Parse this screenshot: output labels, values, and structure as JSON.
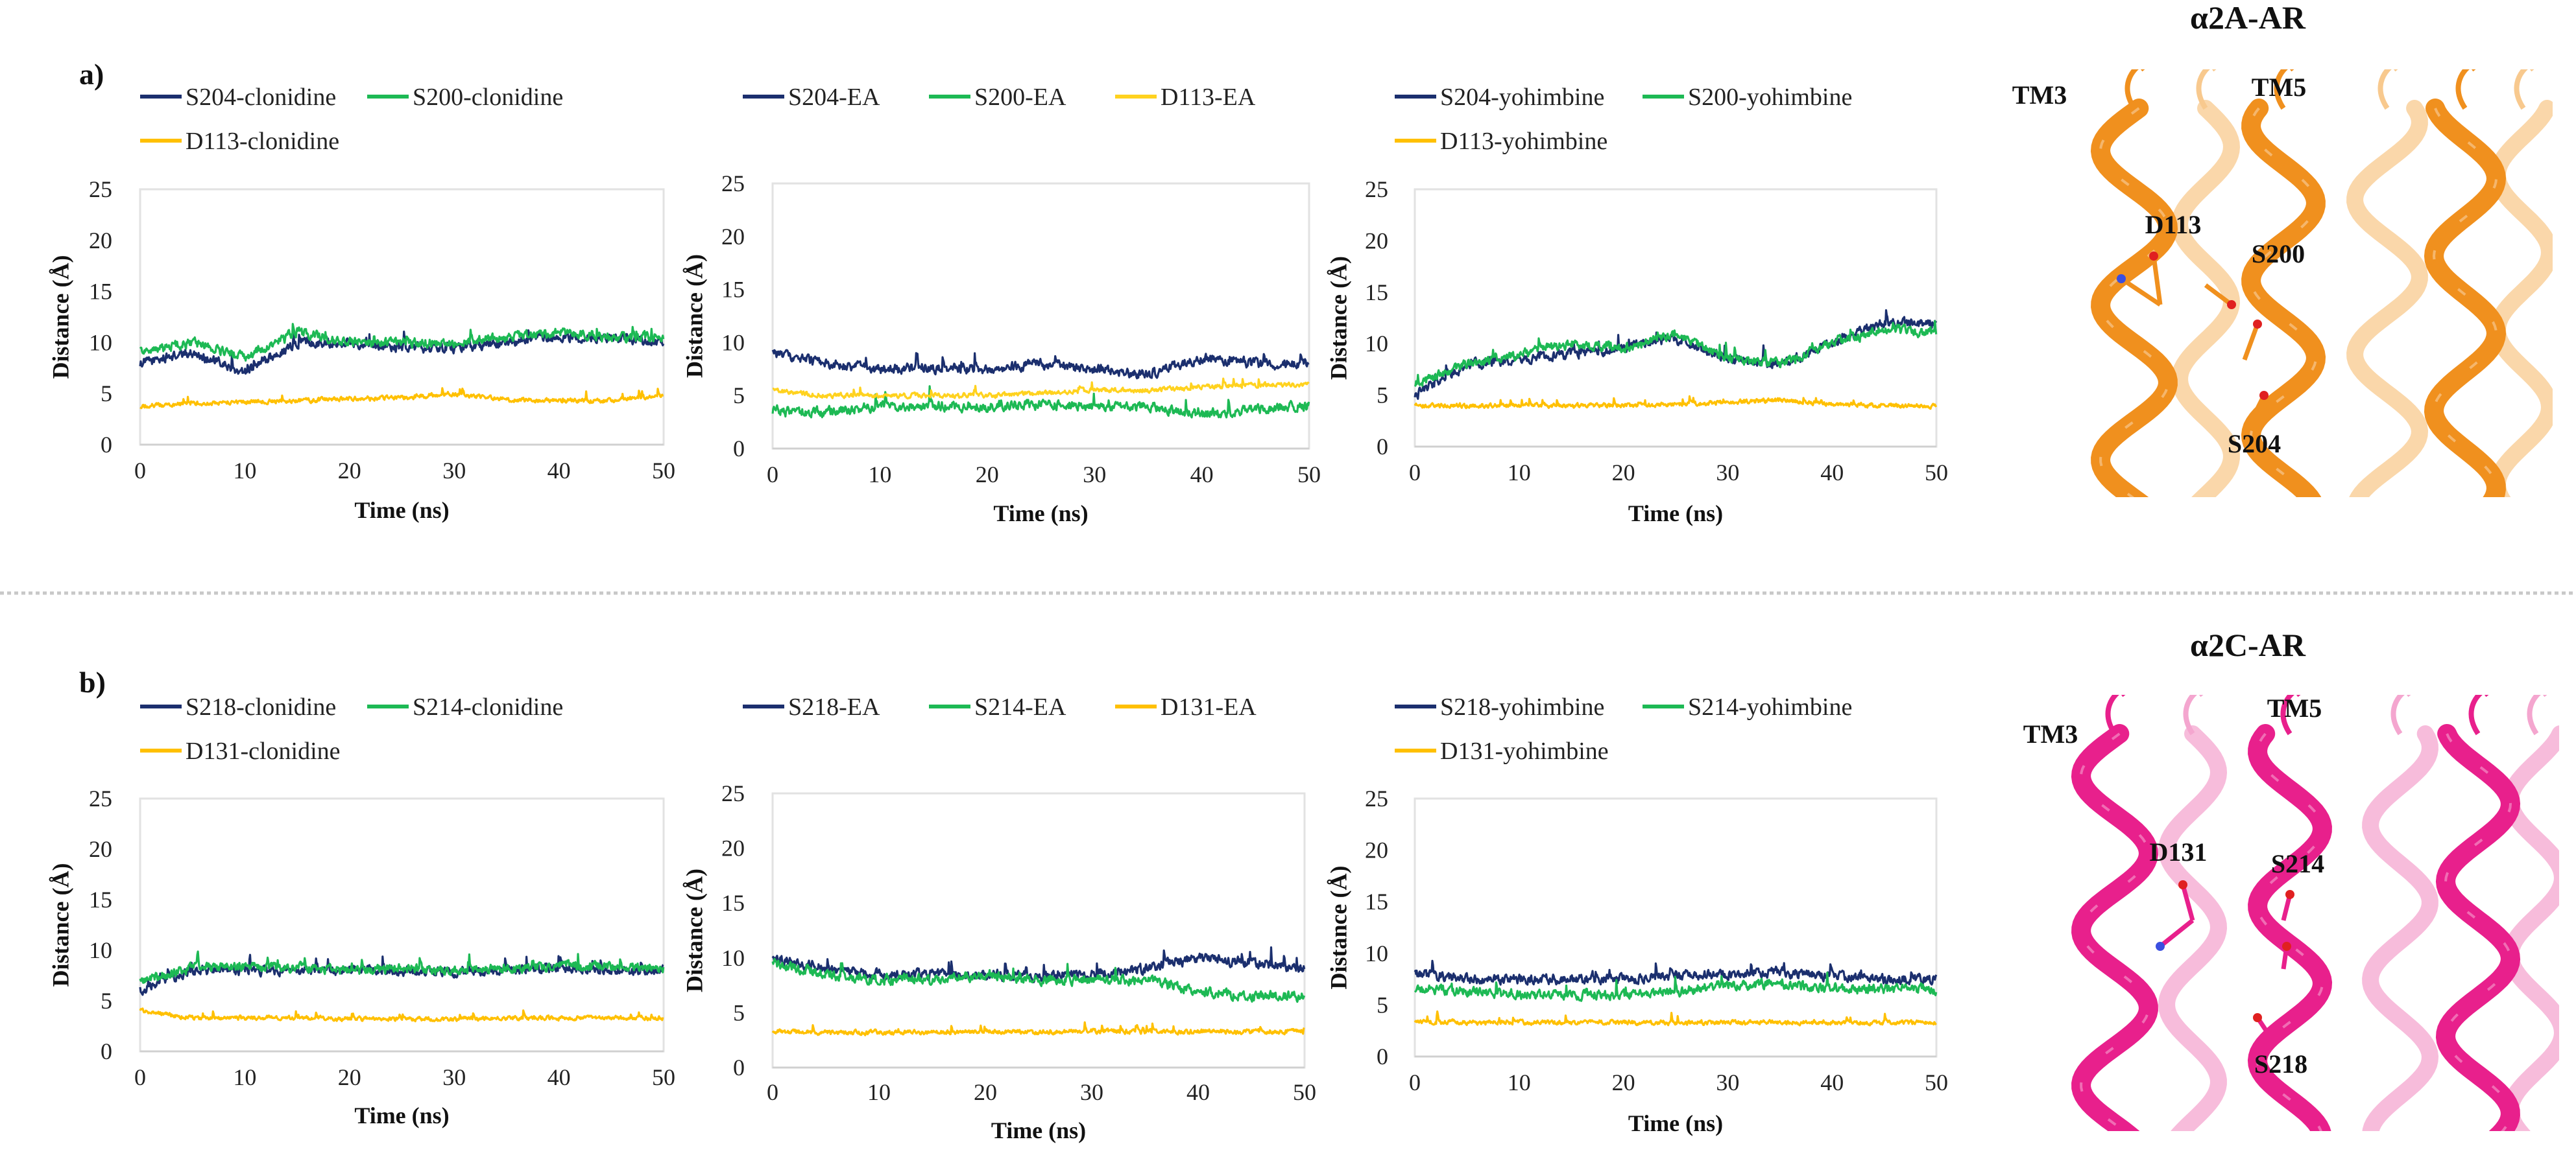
{
  "panels": [
    {
      "label": "a)",
      "protein_title": "α2A-AR",
      "protein_color": "#F0901E",
      "protein_light": "#F8C98E",
      "protein_labels": {
        "tm3": "TM3",
        "tm5": "TM5",
        "res1": "D113",
        "res2": "S200",
        "res3": "S204"
      }
    },
    {
      "label": "b)",
      "protein_title": "α2C-AR",
      "protein_color": "#E8208C",
      "protein_light": "#F4A6CF",
      "protein_labels": {
        "tm3": "TM3",
        "tm5": "TM5",
        "res1": "D131",
        "res2": "S214",
        "res3": "S218"
      }
    }
  ],
  "chart_data": [
    {
      "type": "line",
      "title": "",
      "xlabel": "Time (ns)",
      "ylabel": "Distance (Å)",
      "xlim": [
        0,
        50
      ],
      "ylim": [
        0,
        25
      ],
      "xticks": [
        "0",
        "10",
        "20",
        "30",
        "40",
        "50"
      ],
      "yticks": [
        "0",
        "5",
        "10",
        "15",
        "20",
        "25"
      ],
      "legend": "top",
      "grid": false,
      "x": [
        0,
        5,
        10,
        15,
        20,
        25,
        30,
        35,
        40,
        45,
        50
      ],
      "series": [
        {
          "name": "S204-clonidine",
          "color": "#1B2F6E",
          "values": [
            8,
            9,
            7,
            10,
            10,
            9.5,
            9.5,
            10,
            10.5,
            10.5,
            10
          ]
        },
        {
          "name": "S200-clonidine",
          "color": "#1DB954",
          "values": [
            9,
            10,
            8.5,
            11,
            10,
            10,
            10,
            10.5,
            11,
            10.5,
            10.5
          ]
        },
        {
          "name": "D113-clonidine",
          "color": "#FFC000",
          "values": [
            3.8,
            4,
            4.2,
            4.3,
            4.5,
            4.6,
            5,
            4.4,
            4.3,
            4.3,
            4.8
          ]
        }
      ]
    },
    {
      "type": "line",
      "title": "",
      "xlabel": "Time (ns)",
      "ylabel": "Distance (Å)",
      "xlim": [
        0,
        50
      ],
      "ylim": [
        0,
        25
      ],
      "xticks": [
        "0",
        "10",
        "20",
        "30",
        "40",
        "50"
      ],
      "yticks": [
        "0",
        "5",
        "10",
        "15",
        "20",
        "25"
      ],
      "legend": "top",
      "grid": false,
      "x": [
        0,
        5,
        10,
        15,
        20,
        25,
        30,
        35,
        40,
        45,
        50
      ],
      "series": [
        {
          "name": "S204-EA",
          "color": "#1B2F6E",
          "values": [
            9,
            8,
            7.5,
            7.5,
            7.5,
            8,
            7.5,
            7,
            8.5,
            8,
            8
          ]
        },
        {
          "name": "S200-EA",
          "color": "#1DB954",
          "values": [
            3.5,
            3.5,
            4,
            4,
            4,
            4.2,
            4,
            4,
            3.2,
            3.8,
            4
          ]
        },
        {
          "name": "D113-EA",
          "color": "#FFD21F",
          "values": [
            5.5,
            5,
            5,
            5,
            5,
            5.2,
            5.5,
            5.5,
            5.8,
            6,
            6
          ]
        }
      ]
    },
    {
      "type": "line",
      "title": "",
      "xlabel": "Time (ns)",
      "ylabel": "Distance (Å)",
      "xlim": [
        0,
        50
      ],
      "ylim": [
        0,
        25
      ],
      "xticks": [
        "0",
        "10",
        "20",
        "30",
        "40",
        "50"
      ],
      "yticks": [
        "0",
        "5",
        "10",
        "15",
        "20",
        "25"
      ],
      "legend": "top",
      "grid": false,
      "x": [
        0,
        5,
        10,
        15,
        20,
        25,
        30,
        35,
        40,
        45,
        50
      ],
      "series": [
        {
          "name": "S204-yohimbine",
          "color": "#1B2F6E",
          "values": [
            5,
            8,
            8.5,
            9,
            9.5,
            10.5,
            8.5,
            8,
            10,
            12,
            12
          ]
        },
        {
          "name": "S200-yohimbine",
          "color": "#1DB954",
          "values": [
            6,
            8,
            9,
            10,
            9.5,
            11,
            8.5,
            8,
            10,
            11.5,
            11
          ]
        },
        {
          "name": "D113-yohimbine",
          "color": "#FFC000",
          "values": [
            4,
            4,
            4,
            4,
            4,
            4.1,
            4.3,
            4.5,
            4.1,
            4,
            3.9
          ]
        }
      ]
    },
    {
      "type": "line",
      "title": "",
      "xlabel": "Time (ns)",
      "ylabel": "Distance (Å)",
      "xlim": [
        0,
        50
      ],
      "ylim": [
        0,
        25
      ],
      "xticks": [
        "0",
        "10",
        "20",
        "30",
        "40",
        "50"
      ],
      "yticks": [
        "0",
        "5",
        "10",
        "15",
        "20",
        "25"
      ],
      "legend": "top",
      "grid": false,
      "x": [
        0,
        5,
        10,
        15,
        20,
        25,
        30,
        35,
        40,
        45,
        50
      ],
      "series": [
        {
          "name": "S218-clonidine",
          "color": "#1B2F6E",
          "values": [
            6,
            8,
            8,
            8,
            8,
            8,
            7.8,
            8,
            8.2,
            8,
            8
          ]
        },
        {
          "name": "S214-clonidine",
          "color": "#1DB954",
          "values": [
            7,
            8.3,
            8.3,
            8.3,
            8,
            8.2,
            8,
            8.2,
            8.5,
            8.3,
            8.3
          ]
        },
        {
          "name": "D131-clonidine",
          "color": "#FFC000",
          "values": [
            4,
            3.3,
            3.3,
            3.3,
            3.2,
            3.2,
            3.2,
            3.3,
            3.3,
            3.3,
            3.3
          ]
        }
      ]
    },
    {
      "type": "line",
      "title": "",
      "xlabel": "Time (ns)",
      "ylabel": "Distance (Å)",
      "xlim": [
        0,
        50
      ],
      "ylim": [
        0,
        25
      ],
      "xticks": [
        "0",
        "10",
        "20",
        "30",
        "40",
        "50"
      ],
      "yticks": [
        "0",
        "5",
        "10",
        "15",
        "20",
        "25"
      ],
      "legend": "top",
      "grid": false,
      "x": [
        0,
        5,
        10,
        15,
        20,
        25,
        30,
        35,
        40,
        45,
        50
      ],
      "series": [
        {
          "name": "S218-EA",
          "color": "#1B2F6E",
          "values": [
            10,
            9,
            8.5,
            8.5,
            8.5,
            8.3,
            8.5,
            9,
            10,
            9.5,
            9
          ]
        },
        {
          "name": "S214-EA",
          "color": "#1DB954",
          "values": [
            9.5,
            8.5,
            8,
            8,
            8.5,
            8,
            8,
            8,
            7,
            6.5,
            6.5
          ]
        },
        {
          "name": "D131-EA",
          "color": "#FFC000",
          "values": [
            3.3,
            3.2,
            3.2,
            3.2,
            3.3,
            3.2,
            3.3,
            3.3,
            3.3,
            3.3,
            3.3
          ]
        }
      ]
    },
    {
      "type": "line",
      "title": "",
      "xlabel": "Time (ns)",
      "ylabel": "Distance (Å)",
      "xlim": [
        0,
        50
      ],
      "ylim": [
        0,
        25
      ],
      "xticks": [
        "0",
        "10",
        "20",
        "30",
        "40",
        "50"
      ],
      "yticks": [
        "0",
        "5",
        "10",
        "15",
        "20",
        "25"
      ],
      "legend": "top",
      "grid": false,
      "x": [
        0,
        5,
        10,
        15,
        20,
        25,
        30,
        35,
        40,
        45,
        50
      ],
      "series": [
        {
          "name": "S218-yohimbine",
          "color": "#1B2F6E",
          "values": [
            8,
            7.5,
            7.5,
            7.5,
            7.5,
            7.8,
            8,
            8.2,
            7.8,
            7.5,
            7.5
          ]
        },
        {
          "name": "S214-yohimbine",
          "color": "#1DB954",
          "values": [
            6.5,
            6.3,
            6,
            6,
            6,
            6.3,
            7,
            7,
            6.5,
            6.5,
            6.5
          ]
        },
        {
          "name": "D131-yohimbine",
          "color": "#FFC000",
          "values": [
            3.4,
            3.3,
            3.3,
            3.3,
            3.3,
            3.3,
            3.3,
            3.3,
            3.3,
            3.3,
            3.3
          ]
        }
      ]
    }
  ]
}
